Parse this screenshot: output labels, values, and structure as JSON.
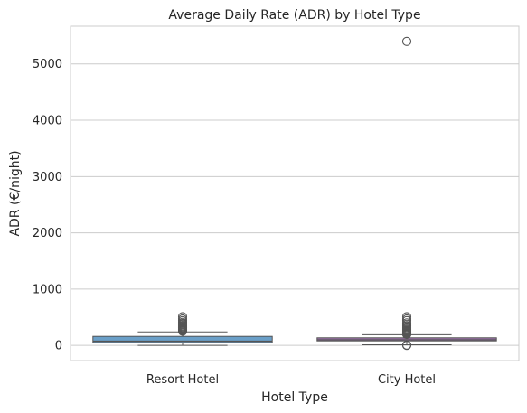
{
  "chart_data": {
    "type": "box",
    "title": "Average Daily Rate (ADR) by Hotel Type",
    "xlabel": "Hotel Type",
    "ylabel": "ADR (€/night)",
    "categories": [
      "Resort Hotel",
      "City Hotel"
    ],
    "ylim": [
      -270,
      5670
    ],
    "yticks": [
      0,
      1000,
      2000,
      3000,
      4000,
      5000
    ],
    "yticks_labels": [
      "0",
      "1000",
      "2000",
      "3000",
      "4000",
      "5000"
    ],
    "grid": true,
    "grid_axis": "y",
    "boxes": [
      {
        "category": "Resort Hotel",
        "color": "#6a9fc8",
        "whisker_low": 0,
        "q1": 50,
        "median": 75,
        "q3": 160,
        "whisker_high": 240,
        "outliers": [
          250,
          260,
          270,
          280,
          290,
          300,
          310,
          320,
          335,
          350,
          370,
          390,
          410,
          440,
          470,
          510
        ]
      },
      {
        "category": "City Hotel",
        "color": "#9a6fa8",
        "whisker_low": 10,
        "q1": 80,
        "median": 100,
        "q3": 135,
        "whisker_high": 190,
        "outliers": [
          0,
          5,
          195,
          200,
          210,
          220,
          230,
          240,
          250,
          265,
          280,
          300,
          320,
          345,
          370,
          400,
          440,
          470,
          510,
          5400
        ]
      }
    ]
  }
}
